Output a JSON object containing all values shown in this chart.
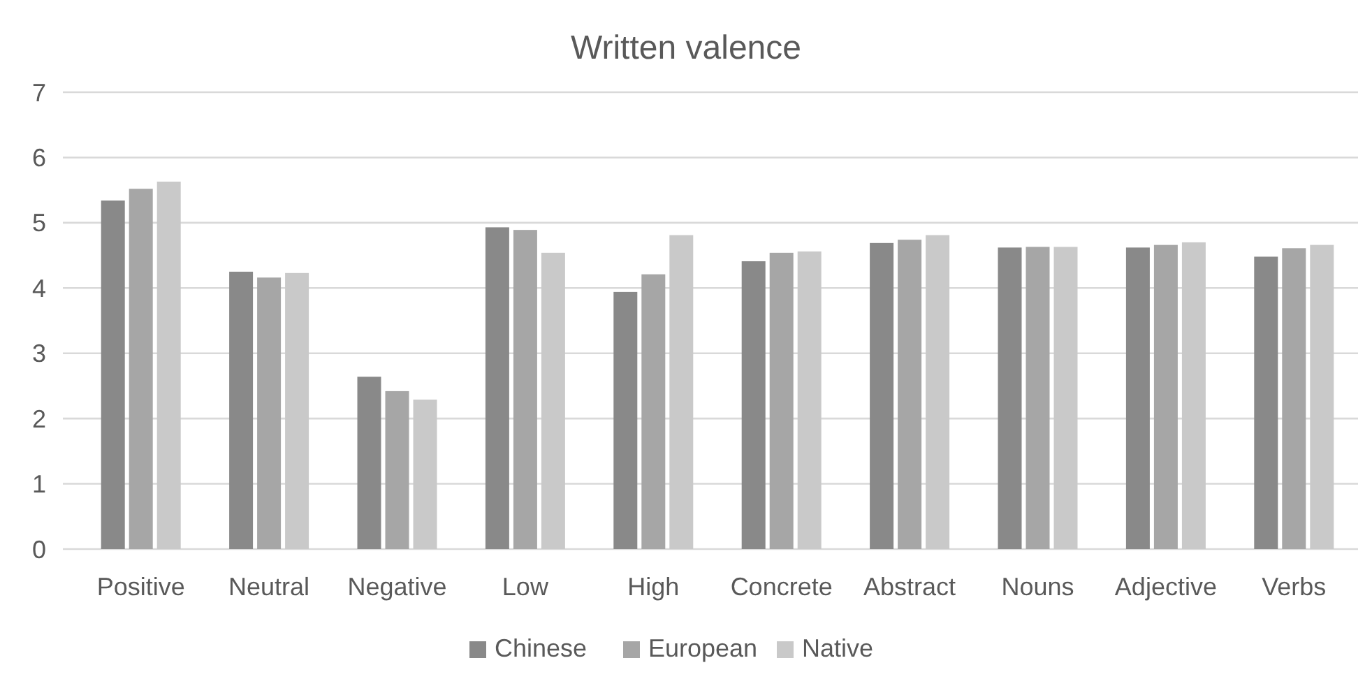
{
  "chart_data": {
    "type": "bar",
    "title": "Written valence",
    "categories": [
      "Positive",
      "Neutral",
      "Negative",
      "Low",
      "High",
      "Concrete",
      "Abstract",
      "Nouns",
      "Adjective",
      "Verbs"
    ],
    "series": [
      {
        "name": "Chinese",
        "color": "#898989",
        "values": [
          5.34,
          4.25,
          2.64,
          4.93,
          3.94,
          4.41,
          4.69,
          4.62,
          4.62,
          4.48
        ]
      },
      {
        "name": "European",
        "color": "#a6a6a6",
        "values": [
          5.52,
          4.16,
          2.42,
          4.89,
          4.21,
          4.54,
          4.74,
          4.63,
          4.66,
          4.61
        ]
      },
      {
        "name": "Native",
        "color": "#c9c9c9",
        "values": [
          5.63,
          4.23,
          2.29,
          4.54,
          4.81,
          4.56,
          4.81,
          4.63,
          4.7,
          4.66
        ]
      }
    ],
    "ylim": [
      0,
      7
    ],
    "yticks": [
      0,
      1,
      2,
      3,
      4,
      5,
      6,
      7
    ],
    "grid": "y",
    "legend": "bottom"
  }
}
